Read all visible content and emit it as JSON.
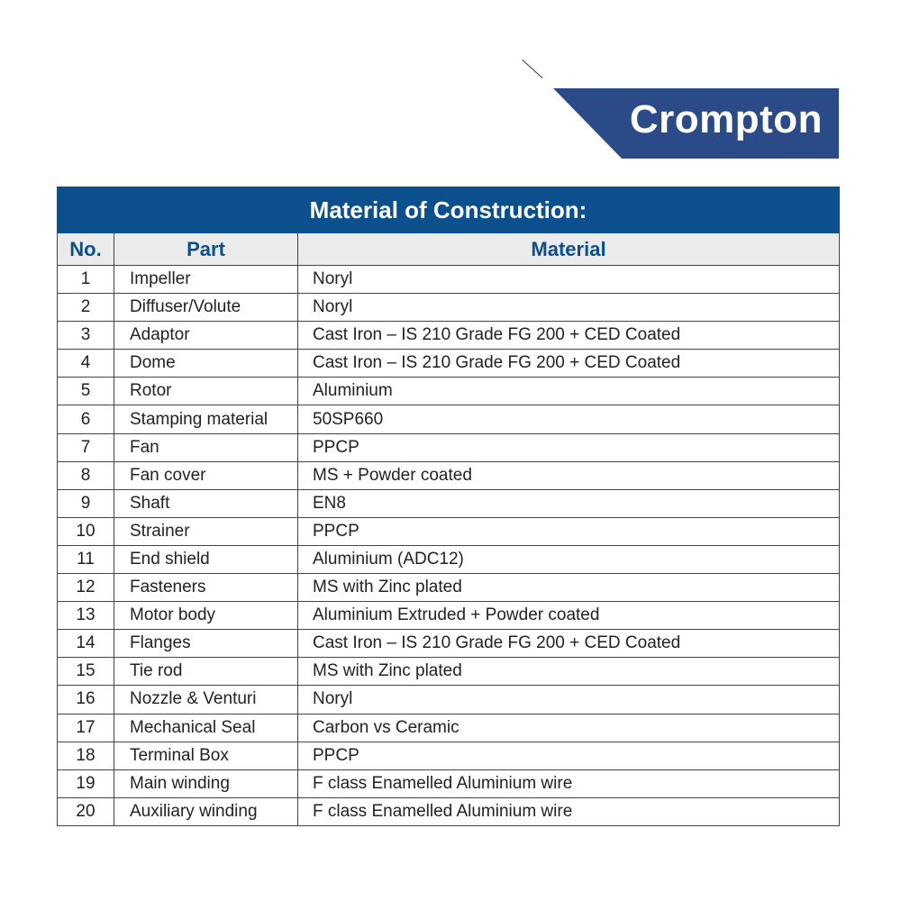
{
  "brand": {
    "name": "Crompton",
    "color": "#2b4a88"
  },
  "table": {
    "title": "Material of Construction:",
    "header_color": "#0b4f8c",
    "columns": [
      "No.",
      "Part",
      "Material"
    ],
    "rows": [
      [
        "1",
        "Impeller",
        "Noryl"
      ],
      [
        "2",
        "Diffuser/Volute",
        "Noryl"
      ],
      [
        "3",
        "Adaptor",
        "Cast Iron – IS 210 Grade FG 200 + CED Coated"
      ],
      [
        "4",
        "Dome",
        "Cast Iron – IS 210 Grade FG 200 + CED Coated"
      ],
      [
        "5",
        "Rotor",
        "Aluminium"
      ],
      [
        "6",
        "Stamping material",
        "50SP660"
      ],
      [
        "7",
        "Fan",
        "PPCP"
      ],
      [
        "8",
        "Fan cover",
        "MS + Powder coated"
      ],
      [
        "9",
        "Shaft",
        "EN8"
      ],
      [
        "10",
        "Strainer",
        "PPCP"
      ],
      [
        "11",
        "End shield",
        "Aluminium (ADC12)"
      ],
      [
        "12",
        "Fasteners",
        "MS with Zinc plated"
      ],
      [
        "13",
        "Motor body",
        "Aluminium Extruded + Powder coated"
      ],
      [
        "14",
        "Flanges",
        "Cast Iron – IS 210 Grade FG 200 + CED Coated"
      ],
      [
        "15",
        "Tie rod",
        "MS with Zinc plated"
      ],
      [
        "16",
        "Nozzle & Venturi",
        "Noryl"
      ],
      [
        "17",
        "Mechanical Seal",
        "Carbon vs Ceramic"
      ],
      [
        "18",
        "Terminal Box",
        "PPCP"
      ],
      [
        "19",
        "Main winding",
        "F class Enamelled Aluminium wire"
      ],
      [
        "20",
        "Auxiliary winding",
        "F class Enamelled Aluminium wire"
      ]
    ]
  }
}
